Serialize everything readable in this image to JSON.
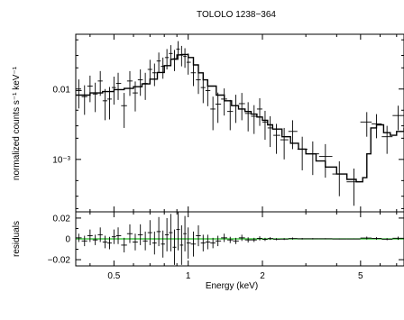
{
  "chart_data": {
    "type": "scatter",
    "title": "TOLOLO 1238−364",
    "xlabel": "Energy (keV)",
    "x_scale": "log",
    "xlim": [
      0.35,
      7.5
    ],
    "x_ticks": [
      {
        "value": 0.5,
        "label": "0.5"
      },
      {
        "value": 1,
        "label": "1"
      },
      {
        "value": 2,
        "label": "2"
      },
      {
        "value": 5,
        "label": "5"
      }
    ],
    "panels": [
      {
        "name": "spectrum",
        "ylabel": "normalized counts s⁻¹ keV⁻¹",
        "y_scale": "log",
        "ylim": [
          0.00018,
          0.06
        ],
        "y_ticks": [
          {
            "value": 0.01,
            "label": "0.01"
          },
          {
            "value": 0.001,
            "label": "10⁻³"
          }
        ],
        "data": {
          "x": [
            0.36,
            0.38,
            0.4,
            0.42,
            0.44,
            0.46,
            0.48,
            0.5,
            0.52,
            0.55,
            0.58,
            0.61,
            0.64,
            0.67,
            0.7,
            0.73,
            0.76,
            0.79,
            0.82,
            0.85,
            0.88,
            0.91,
            0.94,
            0.97,
            1.0,
            1.05,
            1.1,
            1.15,
            1.2,
            1.26,
            1.32,
            1.4,
            1.48,
            1.56,
            1.65,
            1.75,
            1.85,
            1.95,
            2.05,
            2.15,
            2.28,
            2.45,
            2.65,
            2.9,
            3.2,
            3.6,
            4.1,
            4.7,
            5.3,
            5.8,
            6.4,
            7.1
          ],
          "y": [
            0.0095,
            0.0078,
            0.011,
            0.0085,
            0.013,
            0.0068,
            0.0072,
            0.0105,
            0.012,
            0.0058,
            0.013,
            0.0088,
            0.0135,
            0.012,
            0.019,
            0.017,
            0.025,
            0.021,
            0.028,
            0.032,
            0.027,
            0.037,
            0.031,
            0.029,
            0.024,
            0.017,
            0.0135,
            0.0105,
            0.0095,
            0.0052,
            0.0061,
            0.0072,
            0.0048,
            0.0058,
            0.0062,
            0.0045,
            0.0041,
            0.0052,
            0.0034,
            0.0028,
            0.0022,
            0.0019,
            0.0025,
            0.0014,
            0.0012,
            0.0011,
            0.00062,
            0.00048,
            0.0034,
            0.0032,
            0.0021,
            0.0042
          ],
          "err_lo": [
            0.0042,
            0.0035,
            0.0045,
            0.0038,
            0.005,
            0.0032,
            0.0035,
            0.0045,
            0.005,
            0.003,
            0.005,
            0.004,
            0.0055,
            0.005,
            0.007,
            0.006,
            0.008,
            0.007,
            0.009,
            0.01,
            0.009,
            0.011,
            0.01,
            0.009,
            0.008,
            0.006,
            0.005,
            0.0042,
            0.0038,
            0.0026,
            0.0028,
            0.003,
            0.0022,
            0.0025,
            0.0026,
            0.002,
            0.0018,
            0.0022,
            0.0015,
            0.0013,
            0.001,
            0.0009,
            0.0011,
            0.0007,
            0.0006,
            0.00055,
            0.00032,
            0.00026,
            0.0013,
            0.0012,
            0.0009,
            0.0016
          ],
          "err_hi": [
            0.0042,
            0.0035,
            0.0045,
            0.0038,
            0.005,
            0.0032,
            0.0035,
            0.0045,
            0.005,
            0.003,
            0.005,
            0.004,
            0.0055,
            0.005,
            0.007,
            0.006,
            0.008,
            0.007,
            0.009,
            0.01,
            0.009,
            0.011,
            0.01,
            0.009,
            0.008,
            0.006,
            0.005,
            0.0042,
            0.0038,
            0.0026,
            0.0028,
            0.003,
            0.0022,
            0.0025,
            0.0026,
            0.002,
            0.0018,
            0.0022,
            0.0015,
            0.0013,
            0.001,
            0.0009,
            0.0011,
            0.0007,
            0.0006,
            0.00055,
            0.00032,
            0.00026,
            0.0013,
            0.0012,
            0.0009,
            0.0016
          ]
        },
        "model": {
          "x": [
            0.35,
            0.4,
            0.45,
            0.5,
            0.55,
            0.6,
            0.65,
            0.7,
            0.75,
            0.8,
            0.85,
            0.9,
            0.95,
            1.0,
            1.05,
            1.1,
            1.15,
            1.2,
            1.3,
            1.4,
            1.5,
            1.6,
            1.7,
            1.8,
            1.9,
            2.0,
            2.1,
            2.2,
            2.4,
            2.6,
            2.8,
            3.0,
            3.3,
            3.6,
            4.0,
            4.4,
            4.8,
            5.1,
            5.3,
            5.5,
            5.8,
            6.2,
            6.6,
            7.0,
            7.5
          ],
          "y": [
            0.0082,
            0.0088,
            0.0092,
            0.0098,
            0.0102,
            0.0108,
            0.0118,
            0.0138,
            0.0172,
            0.0215,
            0.0265,
            0.0305,
            0.031,
            0.028,
            0.022,
            0.017,
            0.0135,
            0.011,
            0.0082,
            0.0068,
            0.0058,
            0.0052,
            0.0048,
            0.0044,
            0.004,
            0.0036,
            0.0031,
            0.0027,
            0.0021,
            0.0017,
            0.0014,
            0.0012,
            0.00095,
            0.00078,
            0.00062,
            0.00052,
            0.00048,
            0.00055,
            0.0012,
            0.0028,
            0.0031,
            0.0024,
            0.0022,
            0.0025,
            0.0028
          ]
        }
      },
      {
        "name": "residuals",
        "ylabel": "residuals",
        "y_scale": "linear",
        "ylim": [
          -0.026,
          0.026
        ],
        "y_ticks": [
          {
            "value": 0.02,
            "label": "0.02"
          },
          {
            "value": 0,
            "label": "0"
          },
          {
            "value": -0.02,
            "label": "−0.02"
          }
        ],
        "zero_line_color": "#22bb22",
        "data": {
          "x": [
            0.36,
            0.38,
            0.4,
            0.42,
            0.44,
            0.46,
            0.48,
            0.5,
            0.52,
            0.55,
            0.58,
            0.61,
            0.64,
            0.67,
            0.7,
            0.73,
            0.76,
            0.79,
            0.82,
            0.85,
            0.88,
            0.91,
            0.94,
            0.97,
            1.0,
            1.05,
            1.1,
            1.15,
            1.2,
            1.26,
            1.32,
            1.4,
            1.48,
            1.56,
            1.65,
            1.75,
            1.85,
            1.95,
            2.05,
            2.15,
            2.28,
            2.45,
            2.65,
            2.9,
            3.2,
            3.6,
            4.1,
            4.7,
            5.3,
            5.8,
            6.4,
            7.1
          ],
          "y": [
            0.001,
            -0.002,
            0.003,
            -0.001,
            0.004,
            -0.003,
            -0.004,
            0.002,
            0.003,
            -0.006,
            0.005,
            -0.003,
            0.004,
            -0.002,
            0.006,
            -0.004,
            0.007,
            -0.005,
            0.004,
            0.006,
            -0.008,
            0.009,
            -0.006,
            0.005,
            -0.004,
            -0.005,
            0.003,
            -0.004,
            -0.003,
            -0.004,
            -0.002,
            0.001,
            -0.001,
            -0.002,
            0.001,
            -0.001,
            -0.001,
            0.0005,
            -0.0005,
            0.0003,
            -0.0003,
            -0.0002,
            0.0003,
            0.0001,
            0.0001,
            0.0001,
            -0.0001,
            -0.0001,
            0.0008,
            0.0004,
            -0.0003,
            0.0006
          ],
          "err": [
            0.004,
            0.005,
            0.006,
            0.005,
            0.007,
            0.006,
            0.006,
            0.007,
            0.008,
            0.007,
            0.009,
            0.008,
            0.01,
            0.009,
            0.012,
            0.011,
            0.014,
            0.013,
            0.016,
            0.018,
            0.017,
            0.02,
            0.019,
            0.017,
            0.015,
            0.012,
            0.01,
            0.008,
            0.007,
            0.005,
            0.005,
            0.004,
            0.003,
            0.003,
            0.003,
            0.0025,
            0.002,
            0.002,
            0.0015,
            0.0013,
            0.001,
            0.0009,
            0.001,
            0.0007,
            0.0006,
            0.0005,
            0.0004,
            0.0003,
            0.0014,
            0.0012,
            0.001,
            0.0016
          ]
        }
      }
    ]
  }
}
